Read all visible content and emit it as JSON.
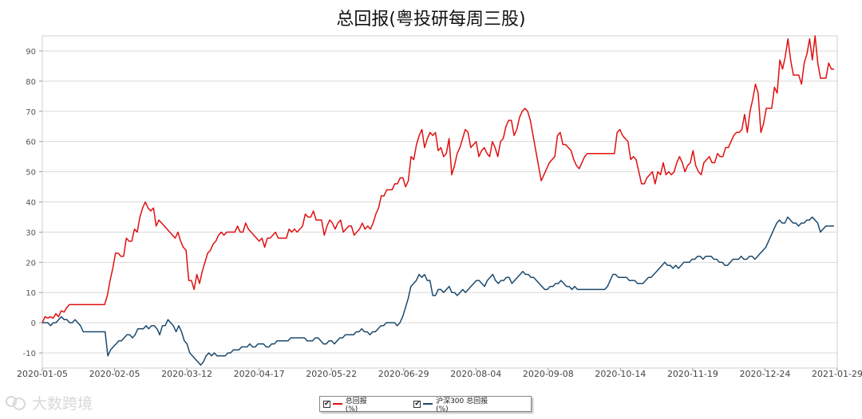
{
  "chart_data": {
    "type": "line",
    "title": "总回报(粤投研每周三股)",
    "xlabel": "",
    "ylabel": "",
    "ylim": [
      -15,
      95
    ],
    "yticks": [
      -10,
      0,
      10,
      20,
      30,
      40,
      50,
      60,
      70,
      80,
      90
    ],
    "x_tick_labels": [
      "2020-01-05",
      "2020-02-05",
      "2020-03-12",
      "2020-04-17",
      "2020-05-22",
      "2020-06-29",
      "2020-08-04",
      "2020-09-08",
      "2020-10-14",
      "2020-11-19",
      "2020-12-24",
      "2021-01-29"
    ],
    "grid": true,
    "legend_position": "bottom-center",
    "series": [
      {
        "name": "总回报(%)",
        "color": "#e01010",
        "values": [
          0,
          2,
          1.5,
          2,
          1.5,
          3,
          2,
          4,
          3.5,
          5,
          6,
          6,
          6,
          6,
          6,
          6,
          6,
          6,
          6,
          6,
          6,
          6,
          6,
          6,
          9,
          14,
          18,
          23,
          23,
          22,
          22,
          28,
          27,
          27,
          31,
          30,
          35,
          38,
          40,
          38,
          37,
          38,
          32,
          34,
          33,
          32,
          31,
          30,
          29,
          28,
          30,
          27,
          25,
          24,
          14,
          14,
          11,
          16,
          13,
          17,
          20,
          23,
          24,
          26,
          27,
          29,
          30,
          29,
          30,
          30,
          30,
          30,
          32,
          30,
          30,
          33,
          31,
          30,
          29,
          28,
          27,
          28,
          25,
          28,
          28,
          29,
          30,
          28,
          28,
          28,
          28,
          31,
          30,
          31,
          30,
          31,
          32,
          36,
          35,
          35,
          37,
          34,
          34,
          34,
          29,
          32,
          34,
          33,
          31,
          33,
          34,
          30,
          31,
          32,
          32,
          29,
          30,
          31,
          33,
          31,
          32,
          31,
          33,
          36,
          38,
          42,
          42,
          44,
          44,
          44,
          46,
          46,
          48,
          48,
          45,
          47,
          55,
          54,
          59,
          62,
          64,
          58,
          61,
          63,
          62,
          63,
          57,
          58,
          55,
          56,
          61,
          49,
          52,
          56,
          58,
          61,
          64,
          63,
          58,
          59,
          60,
          55,
          57,
          58,
          56,
          55,
          60,
          58,
          55,
          60,
          61,
          65,
          67,
          67,
          62,
          64,
          68,
          70,
          71,
          70,
          67,
          62,
          57,
          52,
          47,
          49,
          51,
          53,
          54,
          55,
          62,
          63,
          59,
          59,
          58,
          57,
          54,
          52,
          51,
          53,
          55,
          56,
          56,
          56,
          56,
          56,
          56,
          56,
          56,
          56,
          56,
          56,
          63,
          64,
          62,
          61,
          60,
          54,
          55,
          54,
          50,
          46,
          46,
          48,
          49,
          50,
          46,
          50,
          49,
          53,
          49,
          50,
          49,
          50,
          53,
          55,
          53,
          50,
          52,
          53,
          57,
          52,
          50,
          49,
          53,
          54,
          55,
          53,
          53,
          56,
          55,
          55,
          58,
          58,
          60,
          62,
          63,
          63,
          64,
          69,
          63,
          70,
          74,
          79,
          76,
          63,
          66,
          71,
          71,
          71,
          78,
          76,
          87,
          84,
          88,
          94,
          87,
          82,
          82,
          82,
          79,
          86,
          89,
          94,
          87,
          95,
          86,
          81,
          81,
          81,
          86,
          84,
          84
        ]
      },
      {
        "name": "沪深300 总回报(%)",
        "color": "#1b4a6e",
        "values": [
          0,
          0,
          0,
          -1,
          0,
          0,
          1,
          2,
          1,
          1,
          0,
          0,
          1,
          0,
          -1,
          -3,
          -3,
          -3,
          -3,
          -3,
          -3,
          -3,
          -3,
          -3,
          -11,
          -9,
          -8,
          -7,
          -6,
          -6,
          -5,
          -4,
          -4,
          -5,
          -4,
          -2,
          -2,
          -2,
          -1,
          -2,
          -1,
          -1,
          -2,
          -4,
          -1,
          -1,
          1,
          0,
          -1,
          -3,
          -1,
          -3,
          -6,
          -7,
          -10,
          -11,
          -12,
          -13,
          -14,
          -13,
          -11,
          -10,
          -11,
          -10,
          -11,
          -11,
          -11,
          -11,
          -10,
          -10,
          -9,
          -9,
          -9,
          -8,
          -8,
          -8,
          -7,
          -8,
          -8,
          -7,
          -7,
          -7,
          -8,
          -8,
          -7,
          -7,
          -6,
          -6,
          -6,
          -6,
          -6,
          -5,
          -5,
          -5,
          -5,
          -5,
          -5,
          -6,
          -6,
          -6,
          -5,
          -5,
          -6,
          -7,
          -7,
          -6,
          -6,
          -7,
          -6,
          -5,
          -5,
          -4,
          -4,
          -4,
          -4,
          -3,
          -3,
          -2,
          -3,
          -3,
          -4,
          -3,
          -3,
          -2,
          -1,
          -1,
          0,
          0,
          0,
          0,
          -1,
          0,
          2,
          5,
          8,
          12,
          13,
          14,
          16,
          15,
          16,
          14,
          14,
          9,
          9,
          11,
          11,
          10,
          11,
          12,
          10,
          10,
          9,
          10,
          11,
          10,
          11,
          12,
          13,
          14,
          14,
          13,
          12,
          14,
          15,
          16,
          14,
          13,
          14,
          14,
          15,
          15,
          13,
          14,
          15,
          16,
          17,
          16,
          16,
          15,
          15,
          14,
          13,
          12,
          11,
          11,
          12,
          12,
          13,
          13,
          14,
          13,
          12,
          12,
          11,
          12,
          11,
          11,
          11,
          11,
          11,
          11,
          11,
          11,
          11,
          11,
          11,
          12,
          14,
          16,
          16,
          15,
          15,
          15,
          15,
          14,
          14,
          14,
          13,
          13,
          13,
          14,
          15,
          15,
          16,
          17,
          18,
          19,
          20,
          19,
          19,
          18,
          19,
          18,
          19,
          20,
          20,
          20,
          21,
          21,
          22,
          22,
          21,
          22,
          22,
          22,
          21,
          21,
          20,
          20,
          19,
          19,
          20,
          21,
          21,
          21,
          22,
          21,
          21,
          22,
          22,
          21,
          22,
          23,
          24,
          25,
          27,
          29,
          31,
          33,
          34,
          33,
          33,
          35,
          34,
          33,
          33,
          32,
          33,
          33,
          34,
          34,
          35,
          34,
          33,
          30,
          31,
          32,
          32,
          32,
          32
        ]
      }
    ]
  },
  "legend": {
    "items": [
      "总回报(%)",
      "沪深300 总回报(%)"
    ],
    "check_glyph": "✔"
  },
  "watermark": {
    "text": "大数跨境",
    "icon": "watermark-logo-icon"
  }
}
